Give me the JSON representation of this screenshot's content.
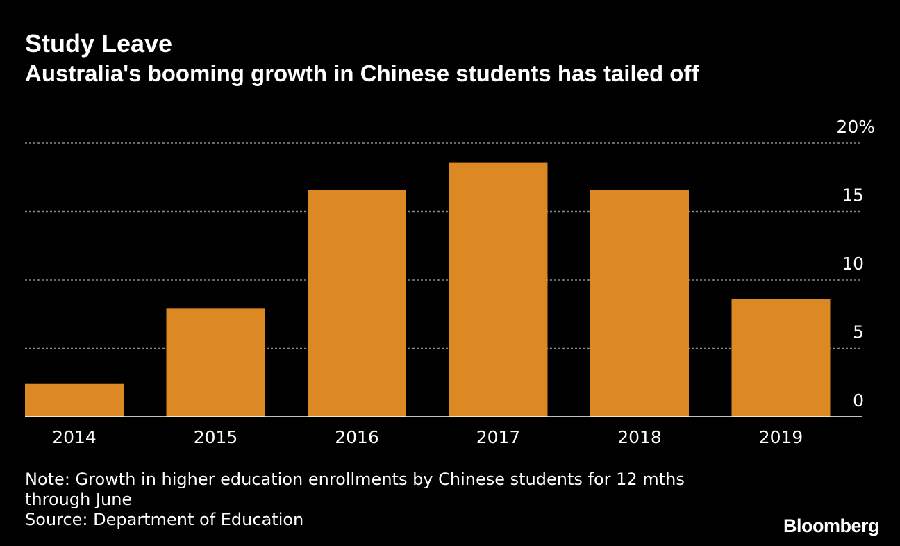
{
  "header": {
    "title": "Study Leave",
    "subtitle": "Australia's booming growth in Chinese students has tailed off"
  },
  "chart_data": {
    "type": "bar",
    "categories": [
      "2014",
      "2015",
      "2016",
      "2017",
      "2018",
      "2019"
    ],
    "values": [
      2.4,
      7.9,
      16.6,
      18.6,
      16.6,
      8.6
    ],
    "ylim": [
      0,
      20
    ],
    "yticks": [
      0,
      5,
      10,
      15,
      20
    ],
    "ytick_labels": [
      "0",
      "5",
      "10",
      "15",
      "20%"
    ],
    "axis_position": "right",
    "grid": true,
    "legend": "none",
    "colors": {
      "bar": "#dc8923",
      "background": "#000000",
      "grid": "#8a8a8a",
      "text": "#ffffff"
    }
  },
  "footer": {
    "note_line1": "Note: Growth in higher education enrollments by Chinese students for 12 mths",
    "note_line2": "through June",
    "source": "Source: Department of Education"
  },
  "brand": {
    "logo_text": "Bloomberg"
  }
}
